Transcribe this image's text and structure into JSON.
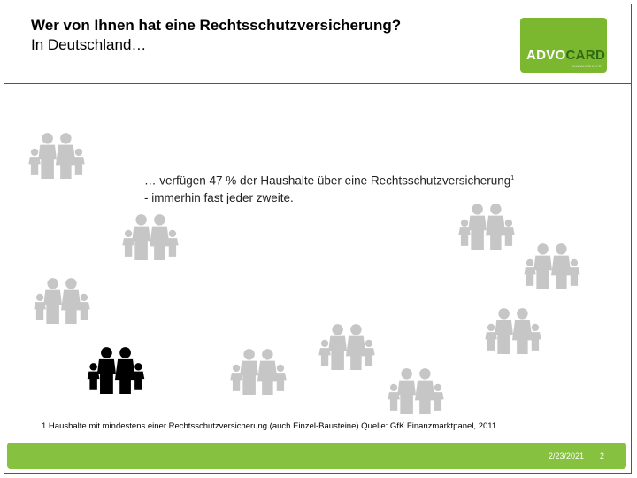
{
  "slide": {
    "title_line1": "Wer von Ihnen hat eine Rechtsschutzversicherung?",
    "title_line2": "In Deutschland…",
    "callout_line1": "… verfügen 47 % der Haushalte über eine Rechtsschutzversicherung",
    "callout_sup": "1",
    "callout_line2": "- immerhin fast jeder zweite.",
    "footnote": "1 Haushalte mit mindestens einer Rechtsschutzversicherung (auch Einzel-Bausteine) Quelle: GfK Finanzmarktpanel, 2011",
    "date": "2/23/2021",
    "page": "2"
  },
  "logo": {
    "part1": "ADVO",
    "part2": "CARD",
    "tagline": "ANWALTSHILFE"
  },
  "colors": {
    "accent_green": "#86c13f",
    "family_grey": "#c6c6c6",
    "family_highlight": "#000000"
  },
  "icons": {
    "family": "family-icon"
  }
}
